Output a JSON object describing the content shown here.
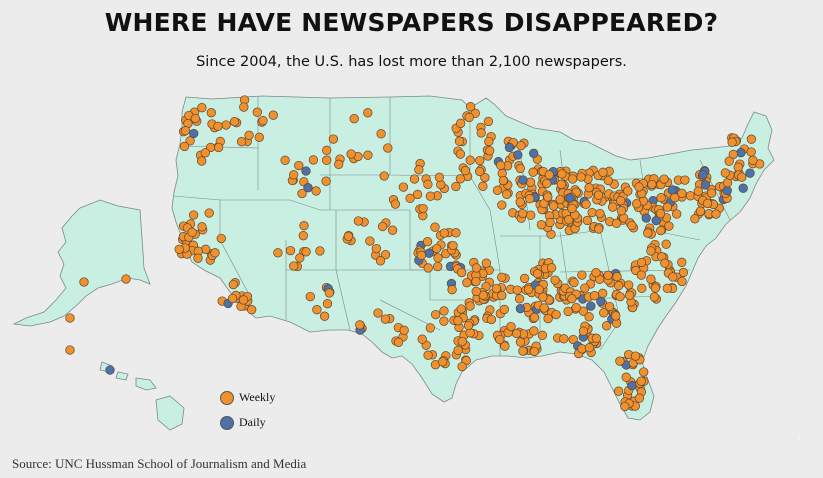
{
  "title": "WHERE HAVE NEWSPAPERS DISAPPEARED?",
  "subtitle": "Since 2004, the U.S. has lost more than 2,100 newspapers.",
  "legend": [
    {
      "label": "Weekly",
      "color": "#f0912e"
    },
    {
      "label": "Daily",
      "color": "#4d72a8"
    }
  ],
  "source": "Source: UNC Hussman School of Journalism and Media",
  "colors": {
    "land": "#c9efe3",
    "border": "#7a8a86",
    "background": "#ececec",
    "dot_stroke": "#5a4632"
  }
}
